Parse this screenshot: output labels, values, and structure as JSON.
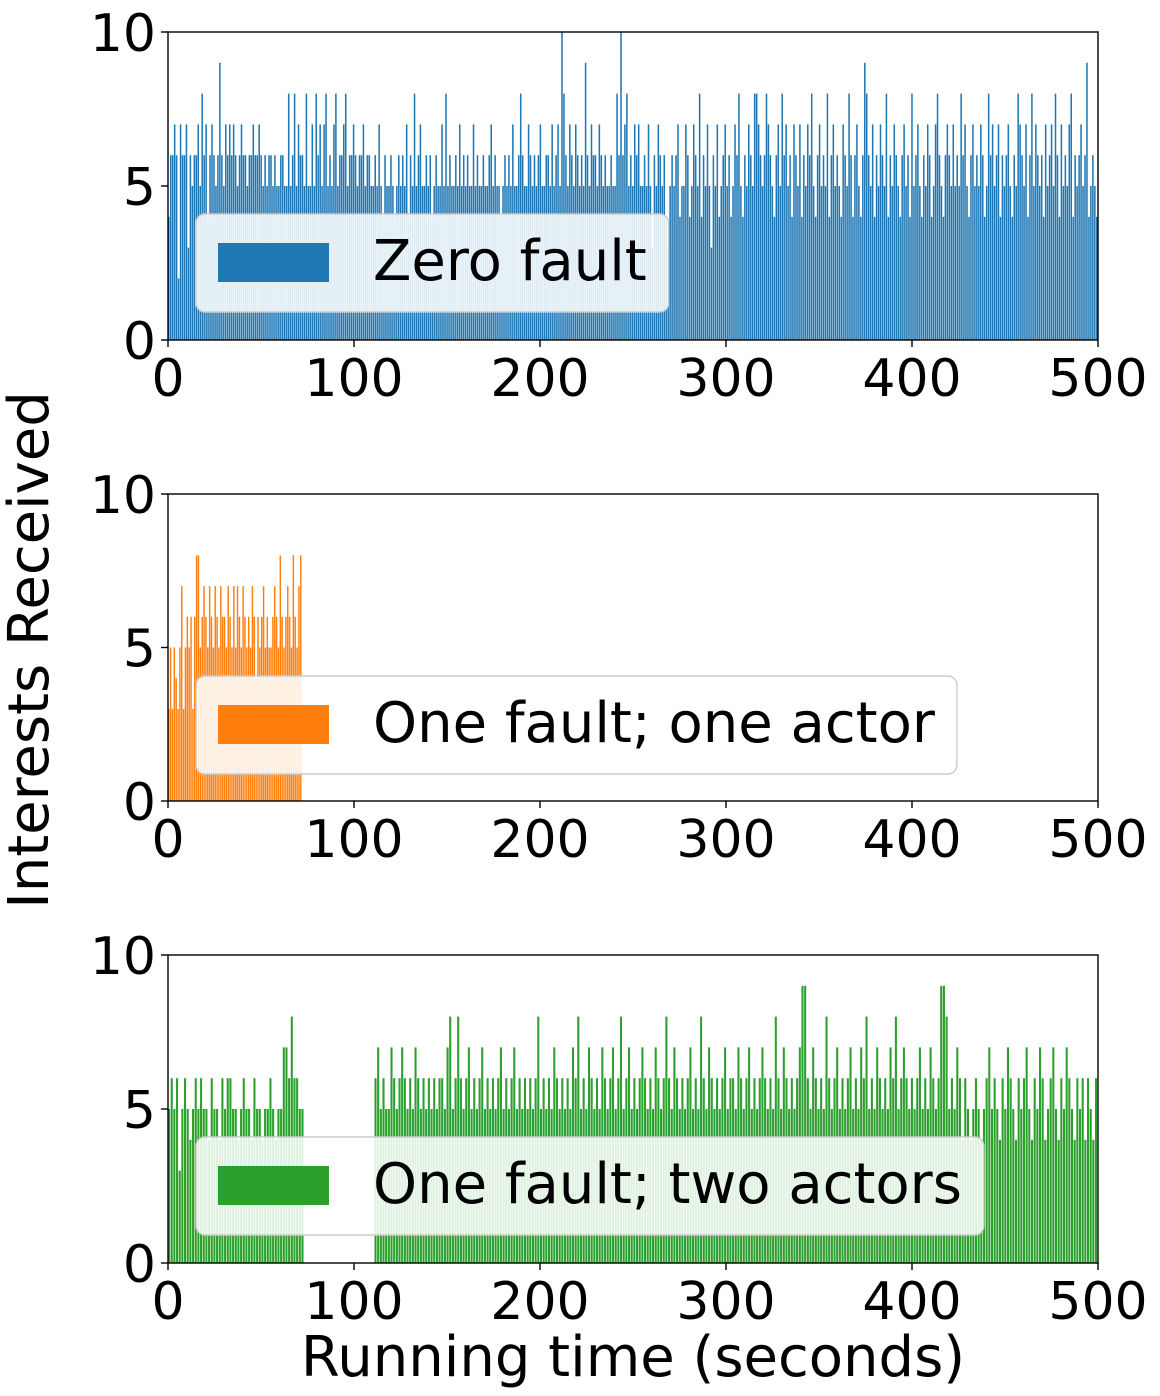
{
  "figure": {
    "ylabel": "Interests Received",
    "xlabel": "Running time (seconds)"
  },
  "chart_data": [
    {
      "type": "bar",
      "legend": "Zero fault",
      "color": "#1f77b4",
      "xlim": [
        0,
        500
      ],
      "ylim": [
        0,
        10
      ],
      "xticks": [
        "0",
        "100",
        "200",
        "300",
        "400",
        "500"
      ],
      "yticks": [
        "0",
        "5",
        "10"
      ],
      "legend_position": "center-left",
      "x_range": [
        0,
        500
      ],
      "values": [
        4,
        6,
        6,
        7,
        6,
        2,
        7,
        6,
        6,
        7,
        3,
        6,
        5,
        6,
        6,
        7,
        5,
        8,
        6,
        7,
        4,
        6,
        7,
        6,
        5,
        6,
        9,
        6,
        5,
        7,
        6,
        7,
        6,
        7,
        6,
        5,
        6,
        7,
        6,
        6,
        5,
        6,
        6,
        7,
        6,
        6,
        7,
        6,
        5,
        6,
        5,
        6,
        6,
        5,
        6,
        5,
        5,
        6,
        6,
        5,
        5,
        8,
        5,
        6,
        8,
        5,
        7,
        6,
        6,
        5,
        8,
        5,
        5,
        7,
        5,
        8,
        6,
        7,
        5,
        7,
        8,
        5,
        6,
        5,
        7,
        8,
        5,
        6,
        6,
        7,
        8,
        5,
        6,
        6,
        7,
        6,
        5,
        6,
        6,
        7,
        5,
        6,
        6,
        5,
        5,
        6,
        5,
        7,
        5,
        4,
        6,
        5,
        5,
        6,
        5,
        4,
        5,
        6,
        5,
        6,
        5,
        7,
        4,
        6,
        5,
        8,
        5,
        6,
        7,
        5,
        5,
        6,
        5,
        6,
        4,
        5,
        6,
        5,
        5,
        7,
        5,
        8,
        5,
        6,
        5,
        5,
        6,
        5,
        7,
        5,
        6,
        5,
        6,
        5,
        5,
        7,
        5,
        6,
        5,
        5,
        6,
        5,
        5,
        6,
        7,
        5,
        6,
        5,
        5,
        4,
        5,
        6,
        5,
        6,
        5,
        7,
        5,
        5,
        6,
        8,
        6,
        5,
        5,
        7,
        6,
        5,
        6,
        5,
        6,
        7,
        5,
        5,
        6,
        6,
        5,
        7,
        5,
        6,
        7,
        5,
        10,
        8,
        6,
        5,
        7,
        6,
        5,
        7,
        6,
        5,
        6,
        5,
        9,
        6,
        5,
        7,
        6,
        6,
        5,
        7,
        6,
        5,
        6,
        5,
        5,
        6,
        5,
        5,
        8,
        6,
        10,
        6,
        7,
        8,
        5,
        6,
        5,
        7,
        6,
        7,
        5,
        5,
        6,
        5,
        7,
        5,
        3,
        6,
        5,
        7,
        6,
        5,
        6,
        4,
        3,
        5,
        6,
        5,
        6,
        7,
        4,
        5,
        5,
        7,
        6,
        4,
        5,
        7,
        6,
        5,
        8,
        4,
        6,
        5,
        7,
        5,
        3,
        6,
        5,
        7,
        4,
        5,
        6,
        7,
        5,
        6,
        4,
        5,
        7,
        6,
        8,
        5,
        4,
        6,
        5,
        7,
        6,
        5,
        8,
        8,
        7,
        6,
        5,
        6,
        8,
        7,
        6,
        5,
        4,
        6,
        7,
        5,
        8,
        6,
        7,
        5,
        6,
        4,
        7,
        6,
        5,
        7,
        4,
        6,
        5,
        7,
        6,
        8,
        5,
        4,
        6,
        7,
        5,
        6,
        5,
        8,
        4,
        6,
        7,
        5,
        6,
        5,
        4,
        7,
        6,
        5,
        8,
        6,
        4,
        6,
        7,
        5,
        4,
        6,
        9,
        8,
        6,
        5,
        7,
        4,
        6,
        5,
        7,
        6,
        5,
        8,
        4,
        6,
        5,
        7,
        6,
        5,
        4,
        6,
        7,
        5,
        6,
        4,
        8,
        5,
        6,
        7,
        5,
        4,
        6,
        5,
        7,
        6,
        4,
        5,
        7,
        8,
        6,
        5,
        4,
        6,
        7,
        6,
        5,
        7,
        5,
        6,
        5,
        8,
        6,
        7,
        5,
        4,
        6,
        7,
        5,
        6,
        5,
        7,
        6,
        4,
        5,
        8,
        6,
        7,
        5,
        6,
        7,
        4,
        6,
        5,
        6,
        7,
        5,
        4,
        6,
        5,
        8,
        7,
        6,
        5,
        7,
        4,
        6,
        8,
        5,
        7,
        6,
        5,
        6,
        4,
        7,
        5,
        6,
        7,
        5,
        8,
        6,
        4,
        7,
        5,
        6,
        5,
        7,
        8,
        4,
        6,
        5,
        6,
        7,
        5,
        6,
        9,
        4,
        5,
        6,
        5,
        4
      ]
    },
    {
      "type": "bar",
      "legend": "One fault; one actor",
      "color": "#ff7f0e",
      "xlim": [
        0,
        500
      ],
      "ylim": [
        0,
        10
      ],
      "xticks": [
        "0",
        "100",
        "200",
        "300",
        "400",
        "500"
      ],
      "yticks": [
        "0",
        "5",
        "10"
      ],
      "legend_position": "center-left",
      "x_range": [
        0,
        72
      ],
      "values": [
        3,
        5,
        3,
        5,
        4,
        3,
        5,
        7,
        3,
        5,
        6,
        5,
        6,
        3,
        6,
        8,
        8,
        5,
        6,
        7,
        6,
        5,
        7,
        6,
        5,
        7,
        6,
        5,
        7,
        6,
        6,
        5,
        7,
        6,
        5,
        7,
        5,
        7,
        6,
        5,
        7,
        6,
        5,
        6,
        5,
        7,
        6,
        4,
        6,
        5,
        6,
        7,
        5,
        6,
        5,
        5,
        6,
        7,
        6,
        5,
        8,
        6,
        5,
        6,
        7,
        6,
        5,
        8,
        6,
        5,
        7,
        8
      ]
    },
    {
      "type": "bar",
      "legend": "One fault; two actors",
      "color": "#2ca02c",
      "xlim": [
        0,
        500
      ],
      "ylim": [
        0,
        10
      ],
      "xticks": [
        "0",
        "100",
        "200",
        "300",
        "400",
        "500"
      ],
      "yticks": [
        "0",
        "5",
        "10"
      ],
      "legend_position": "center-left",
      "x_range": [
        0,
        500
      ],
      "gaps": [
        [
          73,
          111
        ]
      ],
      "values": [
        5,
        6,
        5,
        6,
        3,
        5,
        6,
        5,
        4,
        5,
        6,
        5,
        6,
        5,
        5,
        4,
        6,
        5,
        5,
        4,
        6,
        5,
        6,
        6,
        5,
        5,
        4,
        5,
        6,
        5,
        5,
        4,
        6,
        5,
        5,
        4,
        5,
        5,
        6,
        5,
        4,
        5,
        5,
        7,
        7,
        6,
        8,
        6,
        6,
        5,
        5,
        6,
        7,
        5,
        6,
        5,
        5,
        7,
        6,
        5,
        6,
        7,
        6,
        5,
        6,
        5,
        7,
        6,
        5,
        6,
        5,
        6,
        5,
        6,
        5,
        6,
        6,
        5,
        7,
        8,
        5,
        6,
        8,
        6,
        5,
        6,
        7,
        5,
        6,
        5,
        6,
        7,
        5,
        6,
        5,
        6,
        5,
        6,
        7,
        5,
        6,
        5,
        6,
        7,
        5,
        6,
        5,
        6,
        5,
        6,
        5,
        6,
        8,
        5,
        6,
        5,
        6,
        5,
        7,
        6,
        5,
        6,
        5,
        6,
        5,
        7,
        6,
        8,
        5,
        6,
        5,
        7,
        6,
        5,
        6,
        5,
        7,
        6,
        5,
        6,
        7,
        5,
        6,
        8,
        5,
        6,
        7,
        5,
        6,
        5,
        6,
        7,
        6,
        5,
        6,
        5,
        7,
        6,
        5,
        6,
        8,
        6,
        5,
        7,
        6,
        5,
        6,
        5,
        6,
        7,
        5,
        6,
        5,
        8,
        6,
        5,
        7,
        6,
        5,
        6,
        5,
        6,
        7,
        5,
        6,
        6,
        5,
        7,
        6,
        5,
        6,
        7,
        5,
        6,
        5,
        6,
        7,
        6,
        5,
        6,
        5,
        8,
        6,
        5,
        7,
        6,
        5,
        6,
        5,
        6,
        7,
        9,
        9,
        6,
        5,
        7,
        6,
        5,
        6,
        5,
        8,
        6,
        5,
        6,
        7,
        5,
        6,
        5,
        6,
        7,
        5,
        6,
        5,
        7,
        6,
        8,
        5,
        6,
        5,
        7,
        6,
        5,
        6,
        5,
        7,
        6,
        8,
        5,
        6,
        7,
        6,
        5,
        6,
        5,
        6,
        7,
        5,
        6,
        5,
        7,
        6,
        5,
        6,
        9,
        9,
        8,
        5,
        6,
        5,
        7,
        6,
        4,
        6,
        5,
        4,
        5,
        6,
        5,
        4,
        5,
        6,
        7,
        5,
        6,
        5,
        4,
        6,
        5,
        7,
        6,
        5,
        4,
        6,
        5,
        6,
        7,
        5,
        4,
        6,
        5,
        7,
        6,
        4,
        5,
        6,
        7,
        5,
        4,
        6,
        5,
        7,
        6,
        5,
        4,
        6,
        5,
        6,
        4,
        6,
        5,
        4,
        6
      ]
    }
  ]
}
